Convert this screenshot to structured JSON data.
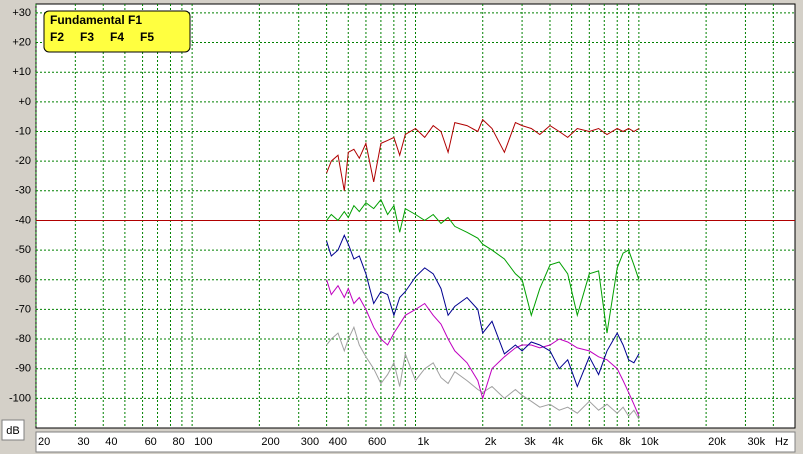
{
  "chart_data": {
    "type": "line",
    "x_log": true,
    "x_label": "Hz",
    "y_label": "dB",
    "xlim": [
      20,
      50000
    ],
    "ylim": [
      -110,
      33
    ],
    "grid": true,
    "grid_color": "#008000",
    "xticks": [
      20,
      30,
      40,
      60,
      80,
      100,
      200,
      300,
      400,
      600,
      {
        "value": 1000,
        "label": "1k"
      },
      {
        "value": 2000,
        "label": "2k"
      },
      {
        "value": 3000,
        "label": "3k"
      },
      {
        "value": 4000,
        "label": "4k"
      },
      {
        "value": 6000,
        "label": "6k"
      },
      {
        "value": 8000,
        "label": "8k"
      },
      {
        "value": 10000,
        "label": "10k"
      },
      {
        "value": 20000,
        "label": "20k"
      },
      {
        "value": 30000,
        "label": "30k"
      }
    ],
    "xgrid_minor": [
      50,
      70,
      90,
      500,
      700,
      800,
      900,
      5000,
      7000,
      9000,
      40000
    ],
    "yticks": [
      {
        "value": 30,
        "label": "+30"
      },
      {
        "value": 20,
        "label": "+20"
      },
      {
        "value": 10,
        "label": "+10"
      },
      {
        "value": 0,
        "label": "+0"
      },
      -10,
      -20,
      -30,
      -40,
      -50,
      -60,
      -70,
      -80,
      -90,
      -100
    ],
    "reference_line": {
      "value": -40,
      "color": "#b00000"
    },
    "legend": "top-left",
    "x": [
      400,
      420,
      450,
      480,
      500,
      530,
      560,
      600,
      650,
      700,
      750,
      800,
      850,
      900,
      1000,
      1100,
      1200,
      1300,
      1400,
      1500,
      1700,
      1900,
      2000,
      2200,
      2500,
      2800,
      3000,
      3300,
      3600,
      4000,
      4400,
      4800,
      5300,
      6000,
      6600,
      7200,
      8000,
      8500,
      9000,
      9500,
      10000
    ],
    "series": [
      {
        "name": "Fundamental F1",
        "color": "#b00000",
        "values": [
          -24,
          -20,
          -18,
          -30,
          -17,
          -16,
          -19,
          -14,
          -27,
          -14,
          -13,
          -12,
          -18,
          -11,
          -9,
          -12,
          -8,
          -10,
          -17,
          -7,
          -8,
          -10,
          -6,
          -9,
          -17,
          -7,
          -8,
          -9,
          -11,
          -8,
          -10,
          -12,
          -9,
          -10,
          -9,
          -11,
          -9,
          -10,
          -9,
          -10,
          -9
        ]
      },
      {
        "name": "F2",
        "color": "#00a000",
        "values": [
          -40,
          -38,
          -40,
          -37,
          -39,
          -35,
          -37,
          -34,
          -36,
          -33,
          -38,
          -35,
          -44,
          -36,
          -38,
          -40,
          -38,
          -41,
          -39,
          -42,
          -44,
          -46,
          -48,
          -50,
          -53,
          -58,
          -60,
          -72,
          -63,
          -55,
          -54,
          -58,
          -72,
          -58,
          -57,
          -78,
          -56,
          -51,
          -50,
          -55,
          -60
        ]
      },
      {
        "name": "F3",
        "color": "#000090",
        "values": [
          -47,
          -52,
          -50,
          -45,
          -48,
          -53,
          -52,
          -58,
          -68,
          -64,
          -65,
          -72,
          -66,
          -64,
          -59,
          -56,
          -58,
          -63,
          -72,
          -69,
          -66,
          -70,
          -78,
          -74,
          -85,
          -82,
          -84,
          -81,
          -82,
          -84,
          -90,
          -87,
          -96,
          -86,
          -92,
          -84,
          -78,
          -82,
          -87,
          -88,
          -85
        ]
      },
      {
        "name": "F4",
        "color": "#c000c0",
        "values": [
          -60,
          -65,
          -62,
          -66,
          -63,
          -68,
          -66,
          -70,
          -76,
          -80,
          -82,
          -78,
          -75,
          -72,
          -70,
          -68,
          -72,
          -75,
          -80,
          -84,
          -88,
          -94,
          -100,
          -90,
          -86,
          -83,
          -82,
          -82,
          -83,
          -82,
          -80,
          -81,
          -83,
          -84,
          -86,
          -87,
          -90,
          -94,
          -98,
          -102,
          -106
        ]
      },
      {
        "name": "F5",
        "color": "#a0a0a0",
        "values": [
          -82,
          -80,
          -78,
          -84,
          -80,
          -76,
          -82,
          -86,
          -90,
          -95,
          -92,
          -88,
          -96,
          -85,
          -94,
          -90,
          -88,
          -93,
          -95,
          -91,
          -94,
          -97,
          -98,
          -96,
          -100,
          -97,
          -99,
          -101,
          -103,
          -102,
          -104,
          -103,
          -105,
          -101,
          -104,
          -102,
          -105,
          -103,
          -106,
          -104,
          -107
        ]
      }
    ]
  }
}
